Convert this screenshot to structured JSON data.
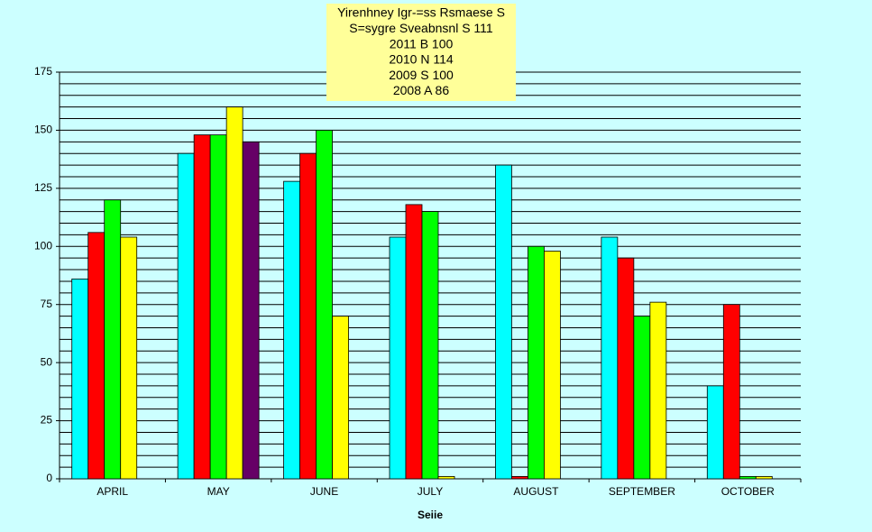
{
  "chart_data": {
    "type": "bar",
    "title": [
      "Yirenhney Igr-=ss Rsmaese S",
      "S=sygre Sveabnsnl S 111",
      "2011 B 100",
      "2010 N 114",
      "2009 S 100",
      "2008 A 86"
    ],
    "x_label": "Seiie",
    "categories": [
      "APRIL",
      "MAY",
      "JUNE",
      "JULY",
      "AUGUST",
      "SEPTEMBER",
      "OCTOBER"
    ],
    "series": [
      {
        "color": "#00ffff",
        "values": [
          86,
          140,
          128,
          104,
          135,
          104,
          40
        ]
      },
      {
        "color": "#ff0000",
        "values": [
          106,
          148,
          140,
          118,
          1,
          95,
          75
        ]
      },
      {
        "color": "#00ff00",
        "values": [
          120,
          148,
          150,
          115,
          100,
          70,
          1
        ]
      },
      {
        "color": "#ffff00",
        "values": [
          104,
          160,
          70,
          1,
          98,
          76,
          1
        ]
      },
      {
        "color": "#660066",
        "values": [
          null,
          145,
          null,
          null,
          null,
          null,
          null
        ]
      }
    ],
    "ylim": [
      0,
      175
    ],
    "yticks": [
      0,
      25,
      50,
      75,
      100,
      125,
      150,
      175
    ],
    "yminor": [
      5,
      10,
      15,
      20,
      30,
      35,
      40,
      45,
      55,
      60,
      65,
      70,
      80,
      85,
      90,
      95,
      105,
      110,
      115,
      120,
      130,
      135,
      140,
      145,
      155,
      160,
      165,
      170
    ],
    "grid": true
  }
}
